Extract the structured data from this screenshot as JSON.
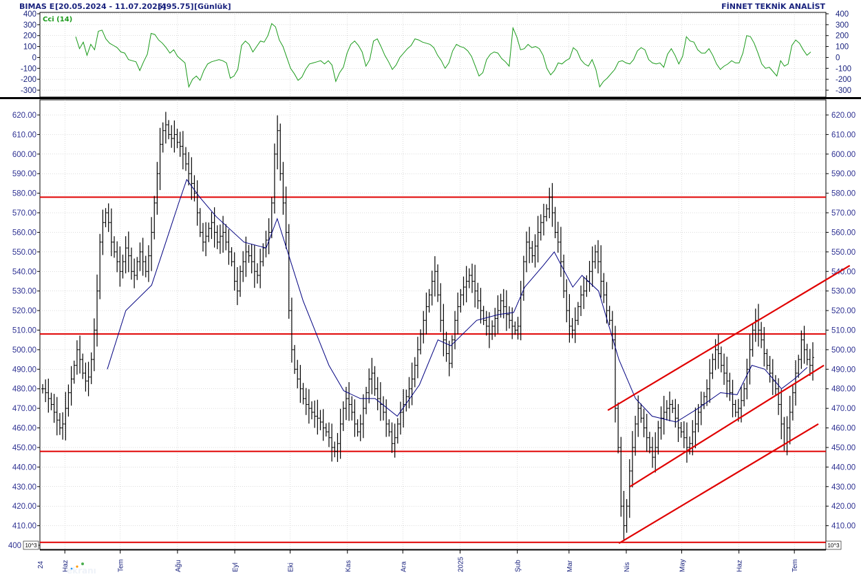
{
  "header": {
    "symbol": "BIMAS E",
    "date_range": "[20.05.2024 - 11.07.2025]",
    "last_value": "[495.75]",
    "period": "[Günlük]",
    "vendor": "FİNNET TEKNİK ANALİST"
  },
  "logo_text": "ekranı",
  "colors": {
    "price_bars": "#000000",
    "moving_average": "#000080",
    "cci_line": "#1a9a1a",
    "cci_label": "#1a9a1a",
    "levels_and_channels": "#e00000",
    "grid": "#b8b8b8",
    "axis_text": "#2e3192"
  },
  "chart_data": [
    {
      "type": "line",
      "indicator": "Cci (14)",
      "ylim": [
        -340,
        400
      ],
      "yticks": [
        400,
        300,
        200,
        100,
        0,
        -100,
        -200,
        -300
      ],
      "ytick_labels": [
        "400",
        "300",
        "200",
        "100",
        "0",
        "-100",
        "-200",
        "-300"
      ],
      "values": [
        190,
        80,
        140,
        20,
        120,
        70,
        240,
        250,
        170,
        130,
        110,
        90,
        50,
        40,
        -20,
        -30,
        -40,
        -120,
        -40,
        30,
        220,
        210,
        160,
        130,
        90,
        40,
        70,
        10,
        -20,
        -50,
        -270,
        -200,
        -170,
        -210,
        -120,
        -60,
        -40,
        -30,
        -20,
        -30,
        -50,
        -190,
        -170,
        -110,
        110,
        150,
        120,
        50,
        100,
        150,
        140,
        200,
        310,
        280,
        160,
        100,
        0,
        -100,
        -150,
        -210,
        -180,
        -110,
        -60,
        -50,
        -40,
        -30,
        -60,
        -30,
        -70,
        -220,
        -140,
        -90,
        40,
        120,
        150,
        110,
        50,
        -80,
        -20,
        150,
        170,
        100,
        20,
        -40,
        -110,
        -70,
        0,
        40,
        80,
        110,
        170,
        160,
        140,
        130,
        120,
        90,
        20,
        -30,
        -100,
        -50,
        60,
        120,
        100,
        90,
        60,
        10,
        -80,
        -170,
        -140,
        -20,
        30,
        50,
        40,
        -10,
        -40,
        -80,
        270,
        190,
        70,
        80,
        120,
        90,
        100,
        80,
        20,
        -100,
        -160,
        -120,
        -50,
        -60,
        -30,
        -10,
        90,
        60,
        -20,
        -60,
        -80,
        -20,
        -110,
        -270,
        -220,
        -190,
        -150,
        -110,
        -40,
        -30,
        -50,
        -60,
        -20,
        60,
        90,
        70,
        -20,
        -50,
        -60,
        -50,
        -90,
        30,
        80,
        20,
        -60,
        10,
        190,
        150,
        140,
        70,
        40,
        40,
        80,
        20,
        -60,
        -110,
        -80,
        -60,
        -30,
        -50,
        -50,
        40,
        200,
        190,
        130,
        40,
        -60,
        -100,
        -90,
        -130,
        -170,
        -30,
        -80,
        -60,
        110,
        160,
        130,
        70,
        20,
        50
      ]
    },
    {
      "type": "ohlc",
      "title": "BIMAS E",
      "ylim": [
        400,
        626
      ],
      "yticks": [
        400,
        410,
        420,
        430,
        440,
        450,
        460,
        470,
        480,
        490,
        500,
        510,
        520,
        530,
        540,
        550,
        560,
        570,
        580,
        590,
        600,
        610,
        620
      ],
      "ytick_labels": [
        "400",
        "410.00",
        "420.00",
        "430.00",
        "440.00",
        "450.00",
        "460.00",
        "470.00",
        "480.00",
        "490.00",
        "500.00",
        "510.00",
        "520.00",
        "530.00",
        "540.00",
        "550.00",
        "560.00",
        "570.00",
        "580.00",
        "590.00",
        "600.00",
        "610.00",
        "620.00"
      ],
      "scale_note": "10^3",
      "x_start": "2024-05-20",
      "x_end": "2025-07-11",
      "x_tick_labels": [
        {
          "date": "2024-06-01",
          "label": "Haz"
        },
        {
          "date": "2024-07-01",
          "label": "Tem"
        },
        {
          "date": "2024-08-01",
          "label": "Ağu"
        },
        {
          "date": "2024-09-01",
          "label": "Eyl"
        },
        {
          "date": "2024-10-01",
          "label": "Eki"
        },
        {
          "date": "2024-11-01",
          "label": "Kas"
        },
        {
          "date": "2024-12-01",
          "label": "Ara"
        },
        {
          "date": "2025-01-01",
          "label": "2025"
        },
        {
          "date": "2025-02-01",
          "label": "Şub"
        },
        {
          "date": "2025-03-01",
          "label": "Mar"
        },
        {
          "date": "2025-04-01",
          "label": "Nis"
        },
        {
          "date": "2025-05-01",
          "label": "May"
        },
        {
          "date": "2025-06-01",
          "label": "Haz"
        },
        {
          "date": "2025-07-01",
          "label": "Tem"
        }
      ],
      "first_x_label": "24",
      "close": [
        480,
        478,
        475,
        472,
        468,
        464,
        460,
        462,
        470,
        478,
        485,
        492,
        500,
        495,
        488,
        484,
        486,
        495,
        510,
        530,
        555,
        565,
        570,
        565,
        555,
        550,
        545,
        540,
        545,
        552,
        548,
        540,
        538,
        545,
        550,
        545,
        540,
        548,
        560,
        575,
        590,
        605,
        612,
        615,
        610,
        608,
        610,
        606,
        604,
        600,
        595,
        590,
        585,
        580,
        570,
        560,
        555,
        558,
        562,
        565,
        560,
        555,
        558,
        560,
        555,
        550,
        545,
        535,
        530,
        540,
        545,
        550,
        548,
        545,
        540,
        538,
        545,
        552,
        556,
        560,
        575,
        600,
        612,
        590,
        575,
        560,
        520,
        500,
        490,
        485,
        480,
        475,
        472,
        470,
        468,
        466,
        465,
        463,
        460,
        458,
        455,
        450,
        448,
        452,
        462,
        470,
        475,
        472,
        468,
        462,
        458,
        462,
        470,
        478,
        485,
        488,
        480,
        475,
        472,
        468,
        462,
        458,
        452,
        455,
        462,
        468,
        472,
        476,
        480,
        485,
        492,
        500,
        508,
        515,
        522,
        528,
        535,
        540,
        528,
        515,
        505,
        498,
        493,
        505,
        515,
        522,
        528,
        532,
        535,
        538,
        535,
        530,
        525,
        520,
        515,
        512,
        508,
        512,
        516,
        520,
        525,
        522,
        518,
        515,
        512,
        510,
        512,
        528,
        545,
        555,
        552,
        548,
        553,
        560,
        565,
        568,
        572,
        578,
        570,
        560,
        555,
        545,
        530,
        520,
        512,
        510,
        515,
        522,
        528,
        530,
        535,
        540,
        545,
        550,
        545,
        535,
        528,
        520,
        515,
        505,
        470,
        450,
        420,
        410,
        420,
        438,
        450,
        462,
        470,
        465,
        460,
        455,
        450,
        445,
        450,
        460,
        465,
        468,
        470,
        472,
        470,
        465,
        460,
        458,
        455,
        450,
        452,
        458,
        462,
        468,
        472,
        476,
        480,
        488,
        495,
        500,
        498,
        492,
        488,
        484,
        478,
        472,
        468,
        470,
        474,
        480,
        490,
        500,
        510,
        515,
        510,
        505,
        498,
        492,
        488,
        484,
        480,
        472,
        462,
        452,
        460,
        468,
        478,
        488,
        495,
        505,
        500,
        495,
        492,
        496
      ]
    }
  ],
  "overlays": {
    "moving_average_anchors": [
      {
        "date": "2024-06-24",
        "value": 490
      },
      {
        "date": "2024-07-04",
        "value": 520
      },
      {
        "date": "2024-07-18",
        "value": 533
      },
      {
        "date": "2024-07-25",
        "value": 553
      },
      {
        "date": "2024-08-02",
        "value": 576
      },
      {
        "date": "2024-08-06",
        "value": 587
      },
      {
        "date": "2024-08-13",
        "value": 578
      },
      {
        "date": "2024-08-22",
        "value": 568
      },
      {
        "date": "2024-09-06",
        "value": 555
      },
      {
        "date": "2024-09-18",
        "value": 552
      },
      {
        "date": "2024-09-24",
        "value": 567
      },
      {
        "date": "2024-09-28",
        "value": 555
      },
      {
        "date": "2024-10-08",
        "value": 525
      },
      {
        "date": "2024-10-22",
        "value": 492
      },
      {
        "date": "2024-10-30",
        "value": 479
      },
      {
        "date": "2024-11-08",
        "value": 475
      },
      {
        "date": "2024-11-16",
        "value": 475
      },
      {
        "date": "2024-11-28",
        "value": 466
      },
      {
        "date": "2024-12-10",
        "value": 482
      },
      {
        "date": "2024-12-20",
        "value": 505
      },
      {
        "date": "2024-12-27",
        "value": 502
      },
      {
        "date": "2025-01-10",
        "value": 515
      },
      {
        "date": "2025-01-22",
        "value": 518
      },
      {
        "date": "2025-01-30",
        "value": 519
      },
      {
        "date": "2025-02-05",
        "value": 532
      },
      {
        "date": "2025-02-15",
        "value": 543
      },
      {
        "date": "2025-02-21",
        "value": 550
      },
      {
        "date": "2025-03-03",
        "value": 532
      },
      {
        "date": "2025-03-08",
        "value": 538
      },
      {
        "date": "2025-03-17",
        "value": 530
      },
      {
        "date": "2025-03-28",
        "value": 495
      },
      {
        "date": "2025-04-06",
        "value": 475
      },
      {
        "date": "2025-04-15",
        "value": 466
      },
      {
        "date": "2025-04-28",
        "value": 463
      },
      {
        "date": "2025-05-10",
        "value": 470
      },
      {
        "date": "2025-05-22",
        "value": 478
      },
      {
        "date": "2025-05-31",
        "value": 477
      },
      {
        "date": "2025-06-08",
        "value": 492
      },
      {
        "date": "2025-06-15",
        "value": 490
      },
      {
        "date": "2025-06-24",
        "value": 480
      },
      {
        "date": "2025-07-01",
        "value": 485
      },
      {
        "date": "2025-07-08",
        "value": 491
      }
    ],
    "horizontal_levels": [
      578,
      508,
      448,
      401.5
    ],
    "channel_lines": [
      {
        "from": {
          "date": "2025-03-22",
          "value": 469
        },
        "to": {
          "date": "2025-07-31",
          "value": 543
        }
      },
      {
        "from": {
          "date": "2025-04-03",
          "value": 430
        },
        "to": {
          "date": "2025-07-17",
          "value": 492
        }
      },
      {
        "from": {
          "date": "2025-03-28",
          "value": 401
        },
        "to": {
          "date": "2025-07-14",
          "value": 462
        }
      }
    ]
  }
}
